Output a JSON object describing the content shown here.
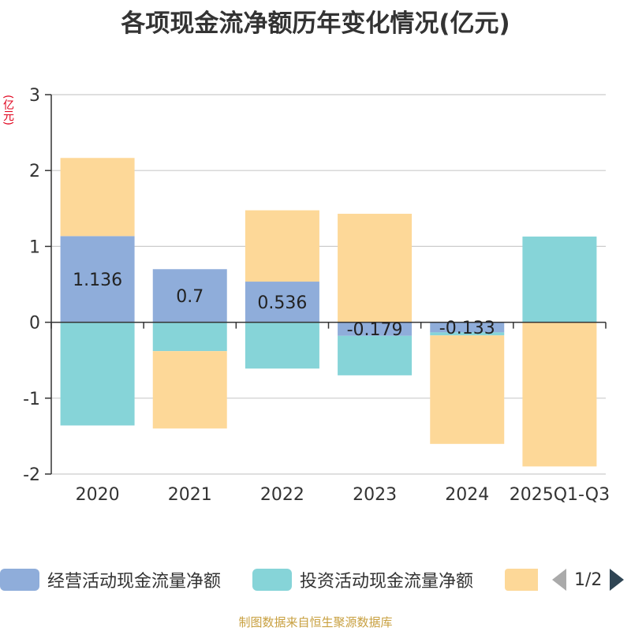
{
  "chart_data": {
    "type": "bar",
    "stacked": true,
    "title": "各项现金流净额历年变化情况(亿元)",
    "ylabel": "(亿元)",
    "ylim": [
      -2,
      3
    ],
    "yticks": [
      3,
      2,
      1,
      0,
      -1,
      -2
    ],
    "categories": [
      "2020",
      "2021",
      "2022",
      "2023",
      "2024",
      "2025Q1-Q3"
    ],
    "series": [
      {
        "name": "经营活动现金流量净额",
        "color": "#8fadda",
        "values": [
          1.136,
          0.7,
          0.536,
          -0.179,
          -0.133,
          0.0
        ],
        "labels": [
          "1.136",
          "0.7",
          "0.536",
          "-0.179",
          "-0.133",
          ""
        ]
      },
      {
        "name": "投资活动现金流量净额",
        "color": "#86d4d8",
        "values": [
          -1.36,
          -0.38,
          -0.61,
          -0.52,
          -0.04,
          1.13
        ]
      },
      {
        "name": "",
        "color": "#fdd898",
        "values": [
          1.03,
          -1.02,
          0.94,
          1.43,
          -1.43,
          -1.9
        ]
      }
    ]
  },
  "legend": {
    "items": [
      {
        "label": "经营活动现金流量净额",
        "color": "#8fadda"
      },
      {
        "label": "投资活动现金流量净额",
        "color": "#86d4d8"
      },
      {
        "label": "",
        "color": "#fdd898"
      }
    ],
    "page": "1/2"
  },
  "source": "制图数据来自恒生聚源数据库"
}
